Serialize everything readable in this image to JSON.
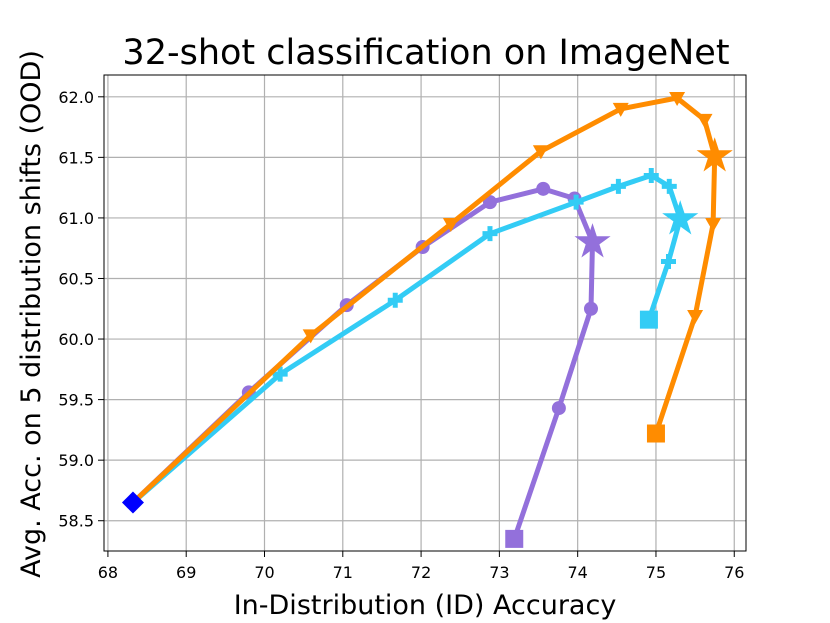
{
  "chart_data": {
    "type": "line",
    "title": "32-shot classification on ImageNet",
    "xlabel": "In-Distribution (ID) Accuracy",
    "ylabel": "Avg. Acc. on 5 distribution shifts (OOD)",
    "xlim": [
      67.95,
      76.15
    ],
    "ylim": [
      58.25,
      62.18
    ],
    "xticks": [
      68,
      69,
      70,
      71,
      72,
      73,
      74,
      75,
      76
    ],
    "yticks": [
      58.5,
      59.0,
      59.5,
      60.0,
      60.5,
      61.0,
      61.5,
      62.0
    ],
    "xtick_labels": [
      "68",
      "69",
      "70",
      "71",
      "72",
      "73",
      "74",
      "75",
      "76"
    ],
    "ytick_labels": [
      "58.5",
      "59.0",
      "59.5",
      "60.0",
      "60.5",
      "61.0",
      "61.5",
      "62.0"
    ],
    "grid": true,
    "colors": {
      "purple": "#9370DB",
      "cyan": "#33CCF5",
      "orange": "#FF8C00",
      "blue": "#0000FF",
      "grid": "#b0b0b0"
    },
    "series": [
      {
        "color": "#9370DB",
        "marker": "circle",
        "points": [
          [
            68.32,
            58.65
          ],
          [
            69.8,
            59.56
          ],
          [
            71.05,
            60.28
          ],
          [
            72.02,
            60.76
          ],
          [
            72.88,
            61.13
          ],
          [
            73.56,
            61.24
          ],
          [
            73.96,
            61.16
          ],
          [
            74.19,
            60.8
          ],
          [
            74.17,
            60.25
          ],
          [
            73.76,
            59.43
          ],
          [
            73.19,
            58.35
          ]
        ],
        "start_marker": "square",
        "special": {
          "index": 7,
          "marker": "star"
        }
      },
      {
        "color": "#33CCF5",
        "marker": "plus",
        "points": [
          [
            68.32,
            58.65
          ],
          [
            70.2,
            59.71
          ],
          [
            71.67,
            60.32
          ],
          [
            72.88,
            60.87
          ],
          [
            73.98,
            61.13
          ],
          [
            74.52,
            61.26
          ],
          [
            74.94,
            61.35
          ],
          [
            75.17,
            61.26
          ],
          [
            75.31,
            60.99
          ],
          [
            75.16,
            60.64
          ],
          [
            74.91,
            60.16
          ]
        ],
        "start_marker": "square",
        "special": {
          "index": 8,
          "marker": "star"
        }
      },
      {
        "color": "#FF8C00",
        "marker": "triangle-down",
        "points": [
          [
            68.32,
            58.65
          ],
          [
            70.59,
            60.03
          ],
          [
            72.38,
            60.95
          ],
          [
            73.53,
            61.55
          ],
          [
            74.55,
            61.9
          ],
          [
            75.27,
            61.99
          ],
          [
            75.62,
            61.81
          ],
          [
            75.75,
            61.51
          ],
          [
            75.73,
            60.95
          ],
          [
            75.5,
            60.19
          ],
          [
            75.0,
            59.22
          ]
        ],
        "start_marker": "square",
        "special": {
          "index": 7,
          "marker": "star"
        }
      }
    ],
    "origin_point": {
      "x": 68.32,
      "y": 58.65,
      "marker": "diamond",
      "color": "#0000FF"
    }
  }
}
